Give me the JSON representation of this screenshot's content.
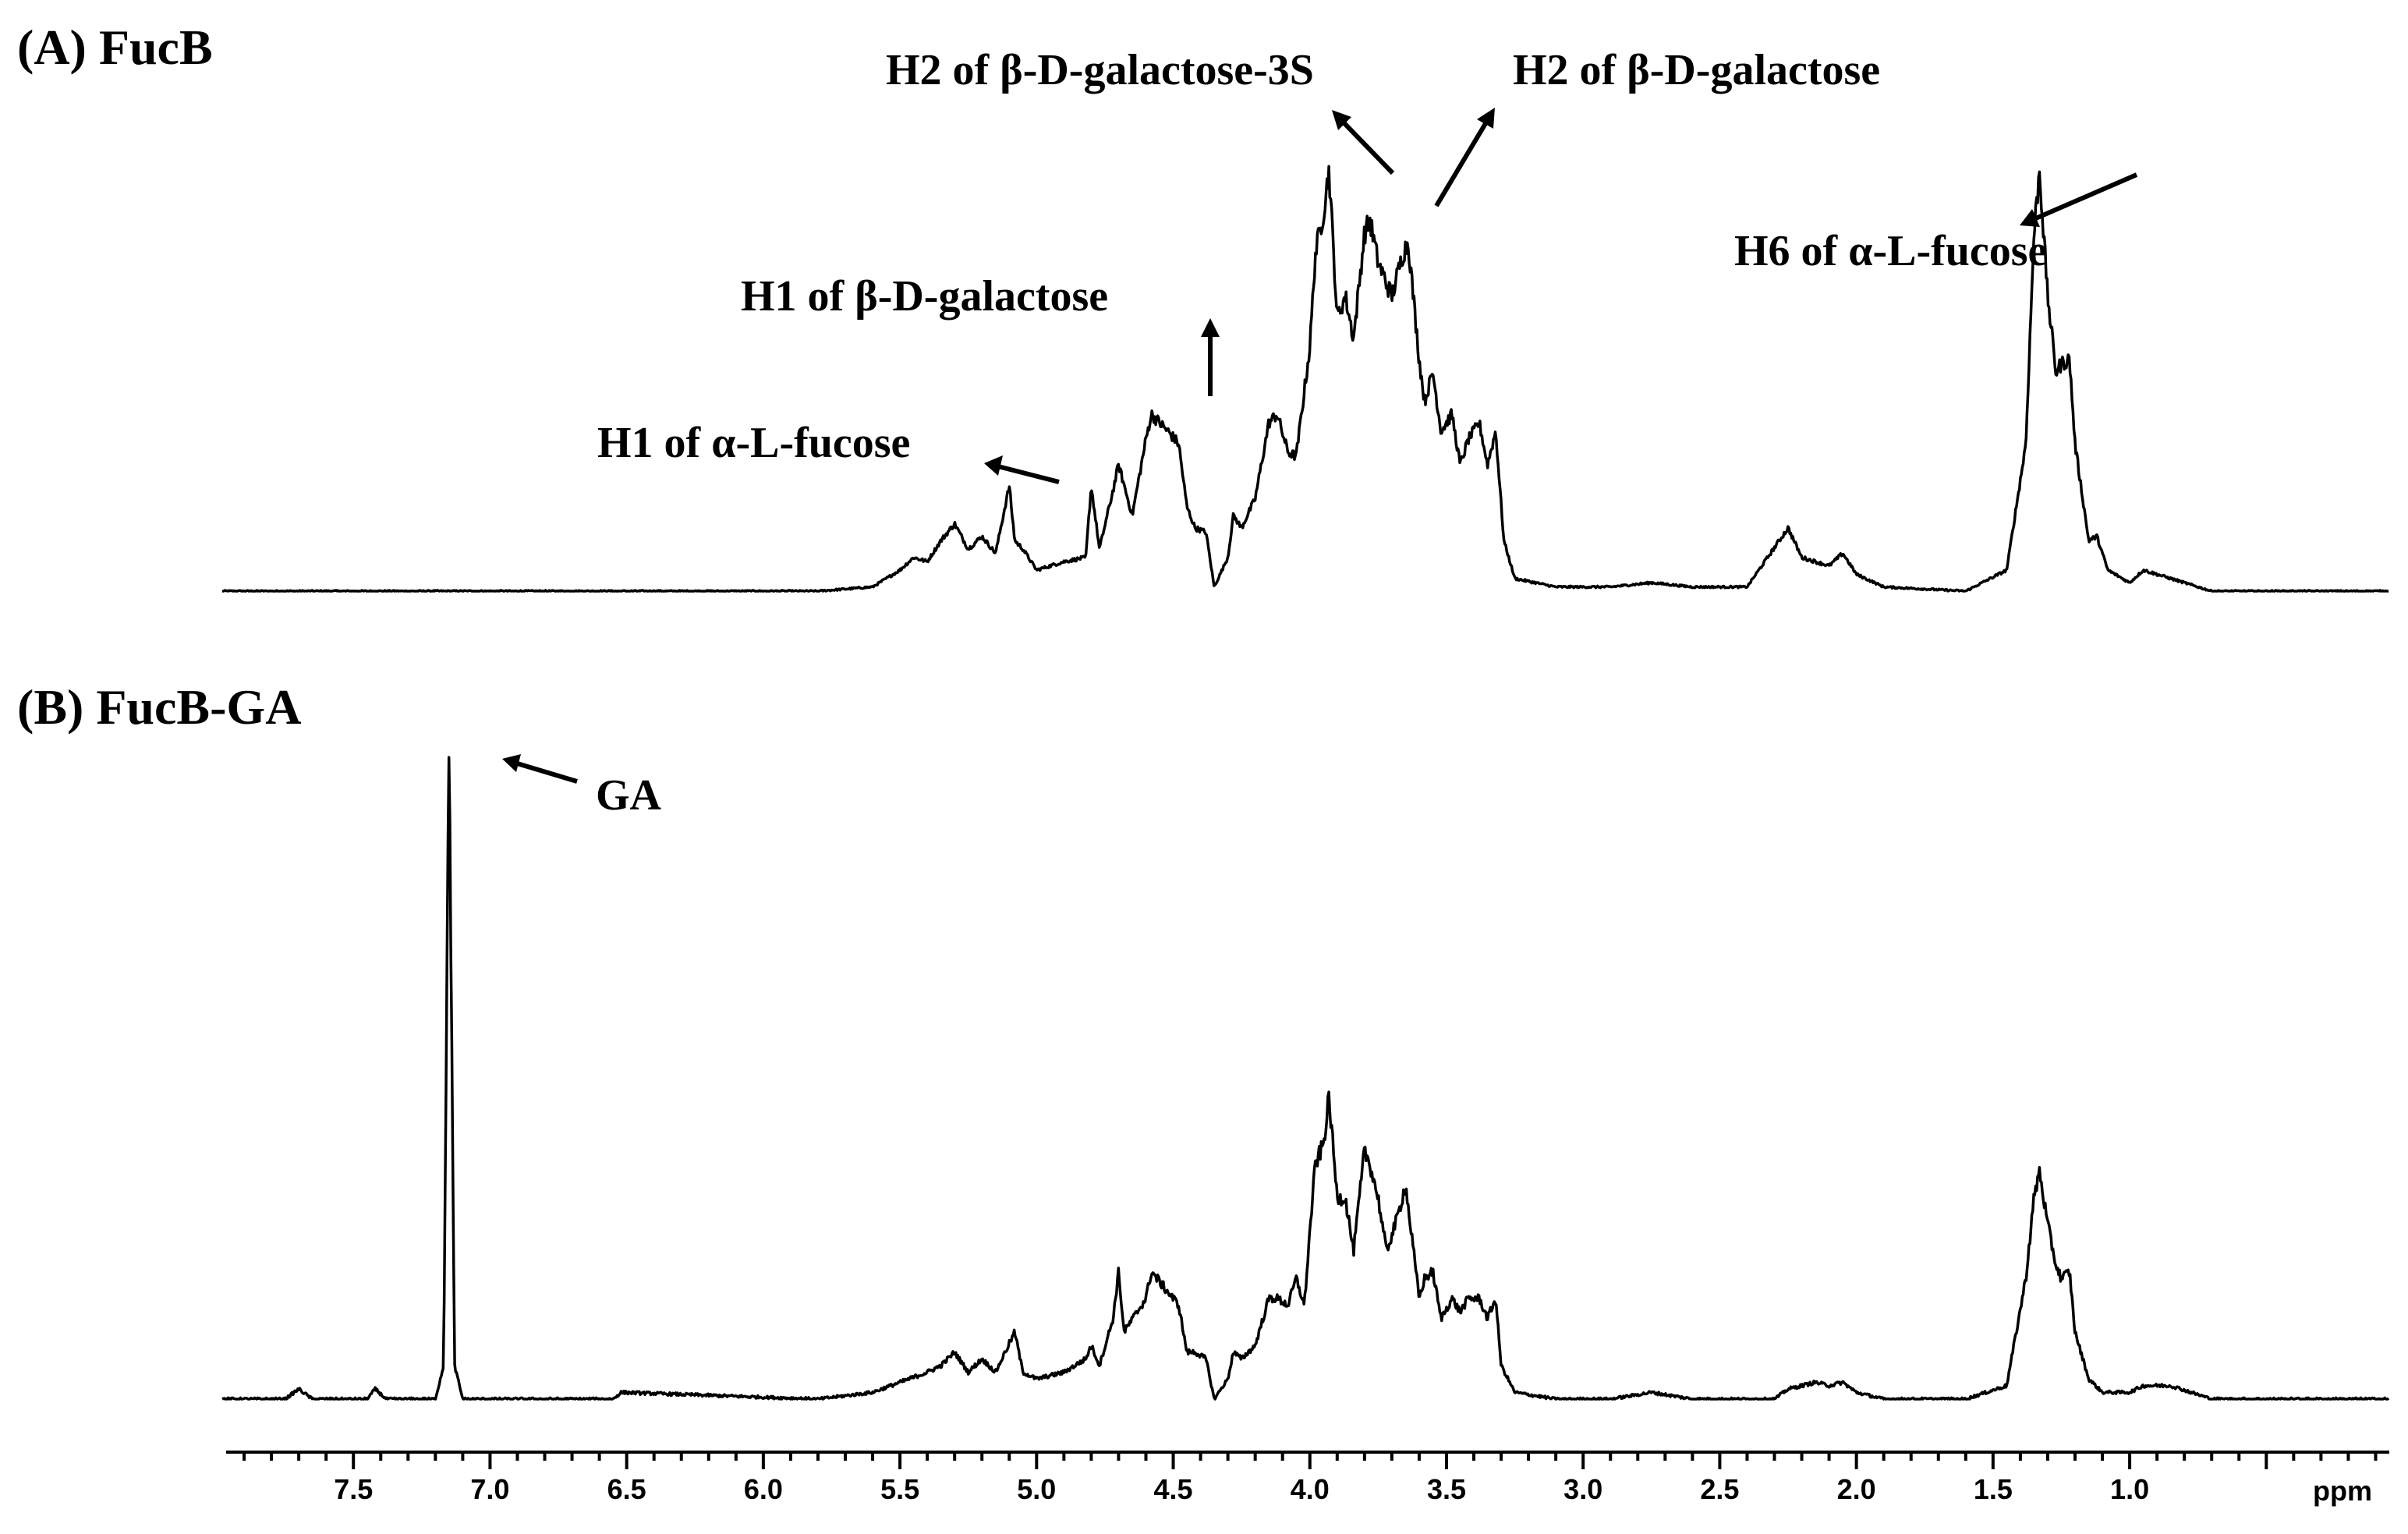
{
  "chart_data": {
    "type": "line",
    "xlabel": "ppm",
    "xlim": [
      7.98,
      0.05
    ],
    "x_reversed": true,
    "ticks_major": [
      "7.5",
      "7.0",
      "6.5",
      "6.0",
      "5.5",
      "5.0",
      "4.5",
      "4.0",
      "3.5",
      "3.0",
      "2.5",
      "2.0",
      "1.5",
      "1.0"
    ],
    "ticks_major_values": [
      7.5,
      7.0,
      6.5,
      6.0,
      5.5,
      5.0,
      4.5,
      4.0,
      3.5,
      3.0,
      2.5,
      2.0,
      1.5,
      1.0
    ],
    "grid": false,
    "panels": [
      {
        "title": "(A) FucB",
        "series_name": "FucB",
        "peaks": [
          [
            7.98,
            0.0
          ],
          [
            5.8,
            0.0
          ],
          [
            5.6,
            0.01
          ],
          [
            5.5,
            0.05
          ],
          [
            5.45,
            0.08
          ],
          [
            5.4,
            0.07
          ],
          [
            5.35,
            0.12
          ],
          [
            5.3,
            0.16
          ],
          [
            5.25,
            0.1
          ],
          [
            5.2,
            0.13
          ],
          [
            5.15,
            0.09
          ],
          [
            5.1,
            0.25
          ],
          [
            5.08,
            0.12
          ],
          [
            5.05,
            0.1
          ],
          [
            5.0,
            0.05
          ],
          [
            4.9,
            0.07
          ],
          [
            4.82,
            0.08
          ],
          [
            4.8,
            0.25
          ],
          [
            4.77,
            0.1
          ],
          [
            4.72,
            0.24
          ],
          [
            4.7,
            0.3
          ],
          [
            4.65,
            0.18
          ],
          [
            4.6,
            0.36
          ],
          [
            4.58,
            0.42
          ],
          [
            4.52,
            0.38
          ],
          [
            4.48,
            0.35
          ],
          [
            4.45,
            0.2
          ],
          [
            4.42,
            0.15
          ],
          [
            4.38,
            0.14
          ],
          [
            4.35,
            0.01
          ],
          [
            4.3,
            0.08
          ],
          [
            4.28,
            0.18
          ],
          [
            4.25,
            0.15
          ],
          [
            4.2,
            0.22
          ],
          [
            4.15,
            0.4
          ],
          [
            4.12,
            0.42
          ],
          [
            4.08,
            0.33
          ],
          [
            4.05,
            0.32
          ],
          [
            4.0,
            0.58
          ],
          [
            3.98,
            0.8
          ],
          [
            3.95,
            0.9
          ],
          [
            3.93,
            1.0
          ],
          [
            3.9,
            0.65
          ],
          [
            3.87,
            0.7
          ],
          [
            3.84,
            0.6
          ],
          [
            3.8,
            0.85
          ],
          [
            3.78,
            0.88
          ],
          [
            3.75,
            0.78
          ],
          [
            3.7,
            0.7
          ],
          [
            3.66,
            0.8
          ],
          [
            3.64,
            0.83
          ],
          [
            3.6,
            0.55
          ],
          [
            3.58,
            0.45
          ],
          [
            3.55,
            0.52
          ],
          [
            3.52,
            0.38
          ],
          [
            3.48,
            0.42
          ],
          [
            3.45,
            0.3
          ],
          [
            3.42,
            0.36
          ],
          [
            3.38,
            0.4
          ],
          [
            3.35,
            0.3
          ],
          [
            3.32,
            0.38
          ],
          [
            3.29,
            0.12
          ],
          [
            3.25,
            0.03
          ],
          [
            3.1,
            0.01
          ],
          [
            2.9,
            0.01
          ],
          [
            2.75,
            0.02
          ],
          [
            2.6,
            0.01
          ],
          [
            2.4,
            0.01
          ],
          [
            2.25,
            0.15
          ],
          [
            2.2,
            0.08
          ],
          [
            2.15,
            0.07
          ],
          [
            2.1,
            0.06
          ],
          [
            2.05,
            0.09
          ],
          [
            2.0,
            0.04
          ],
          [
            1.9,
            0.01
          ],
          [
            1.6,
            0.0
          ],
          [
            1.45,
            0.05
          ],
          [
            1.38,
            0.35
          ],
          [
            1.35,
            0.85
          ],
          [
            1.33,
            1.0
          ],
          [
            1.3,
            0.7
          ],
          [
            1.27,
            0.52
          ],
          [
            1.25,
            0.54
          ],
          [
            1.22,
            0.55
          ],
          [
            1.2,
            0.35
          ],
          [
            1.15,
            0.12
          ],
          [
            1.12,
            0.13
          ],
          [
            1.08,
            0.05
          ],
          [
            1.0,
            0.02
          ],
          [
            0.95,
            0.05
          ],
          [
            0.9,
            0.04
          ],
          [
            0.85,
            0.03
          ],
          [
            0.7,
            0.0
          ],
          [
            0.05,
            0.0
          ]
        ],
        "annotations": [
          {
            "text": "H1 of α-L-fucose",
            "ppm": 5.1
          },
          {
            "text": "H1 of β-D-galactose",
            "ppm": 4.58
          },
          {
            "text": "H2 of β-D-galactose-3S",
            "ppm": 3.93
          },
          {
            "text": "H2 of β-D-galactose",
            "ppm": 3.8
          },
          {
            "text": "H6 of α-L-fucose",
            "ppm": 1.33
          }
        ]
      },
      {
        "title": "(B) FucB-GA",
        "series_name": "FucB-GA",
        "peaks": [
          [
            7.98,
            0.0
          ],
          [
            7.75,
            0.0
          ],
          [
            7.7,
            0.015
          ],
          [
            7.65,
            0.0
          ],
          [
            7.45,
            0.0
          ],
          [
            7.42,
            0.015
          ],
          [
            7.38,
            0.0
          ],
          [
            7.2,
            0.0
          ],
          [
            7.17,
            0.05
          ],
          [
            7.15,
            1.0
          ],
          [
            7.13,
            0.05
          ],
          [
            7.1,
            0.0
          ],
          [
            6.55,
            0.0
          ],
          [
            6.52,
            0.01
          ],
          [
            5.8,
            0.0
          ],
          [
            5.6,
            0.01
          ],
          [
            5.5,
            0.025
          ],
          [
            5.4,
            0.04
          ],
          [
            5.35,
            0.05
          ],
          [
            5.3,
            0.07
          ],
          [
            5.25,
            0.04
          ],
          [
            5.2,
            0.06
          ],
          [
            5.15,
            0.04
          ],
          [
            5.08,
            0.1
          ],
          [
            5.05,
            0.04
          ],
          [
            5.0,
            0.03
          ],
          [
            4.9,
            0.04
          ],
          [
            4.82,
            0.06
          ],
          [
            4.8,
            0.08
          ],
          [
            4.77,
            0.05
          ],
          [
            4.72,
            0.12
          ],
          [
            4.7,
            0.19
          ],
          [
            4.68,
            0.1
          ],
          [
            4.6,
            0.15
          ],
          [
            4.58,
            0.19
          ],
          [
            4.52,
            0.16
          ],
          [
            4.48,
            0.14
          ],
          [
            4.45,
            0.07
          ],
          [
            4.42,
            0.07
          ],
          [
            4.38,
            0.06
          ],
          [
            4.35,
            0.0
          ],
          [
            4.3,
            0.03
          ],
          [
            4.28,
            0.07
          ],
          [
            4.25,
            0.06
          ],
          [
            4.2,
            0.08
          ],
          [
            4.15,
            0.15
          ],
          [
            4.12,
            0.15
          ],
          [
            4.08,
            0.14
          ],
          [
            4.05,
            0.18
          ],
          [
            4.02,
            0.14
          ],
          [
            4.0,
            0.25
          ],
          [
            3.98,
            0.35
          ],
          [
            3.95,
            0.38
          ],
          [
            3.93,
            0.45
          ],
          [
            3.9,
            0.3
          ],
          [
            3.87,
            0.3
          ],
          [
            3.84,
            0.22
          ],
          [
            3.8,
            0.37
          ],
          [
            3.78,
            0.35
          ],
          [
            3.75,
            0.3
          ],
          [
            3.72,
            0.22
          ],
          [
            3.68,
            0.27
          ],
          [
            3.65,
            0.32
          ],
          [
            3.6,
            0.15
          ],
          [
            3.58,
            0.18
          ],
          [
            3.55,
            0.19
          ],
          [
            3.52,
            0.12
          ],
          [
            3.48,
            0.15
          ],
          [
            3.45,
            0.13
          ],
          [
            3.42,
            0.15
          ],
          [
            3.38,
            0.15
          ],
          [
            3.35,
            0.12
          ],
          [
            3.32,
            0.15
          ],
          [
            3.3,
            0.05
          ],
          [
            3.25,
            0.01
          ],
          [
            3.1,
            0.0
          ],
          [
            2.9,
            0.0
          ],
          [
            2.75,
            0.01
          ],
          [
            2.6,
            0.0
          ],
          [
            2.3,
            0.0
          ],
          [
            2.25,
            0.015
          ],
          [
            2.2,
            0.02
          ],
          [
            2.15,
            0.025
          ],
          [
            2.1,
            0.02
          ],
          [
            2.05,
            0.025
          ],
          [
            2.0,
            0.01
          ],
          [
            1.9,
            0.0
          ],
          [
            1.6,
            0.0
          ],
          [
            1.45,
            0.02
          ],
          [
            1.38,
            0.18
          ],
          [
            1.35,
            0.3
          ],
          [
            1.33,
            0.34
          ],
          [
            1.3,
            0.26
          ],
          [
            1.27,
            0.2
          ],
          [
            1.25,
            0.18
          ],
          [
            1.22,
            0.19
          ],
          [
            1.2,
            0.1
          ],
          [
            1.15,
            0.03
          ],
          [
            1.1,
            0.01
          ],
          [
            1.0,
            0.01
          ],
          [
            0.95,
            0.02
          ],
          [
            0.9,
            0.02
          ],
          [
            0.85,
            0.02
          ],
          [
            0.7,
            0.0
          ],
          [
            0.05,
            0.0
          ]
        ],
        "annotations": [
          {
            "text": "GA",
            "ppm": 7.15
          }
        ]
      }
    ]
  }
}
